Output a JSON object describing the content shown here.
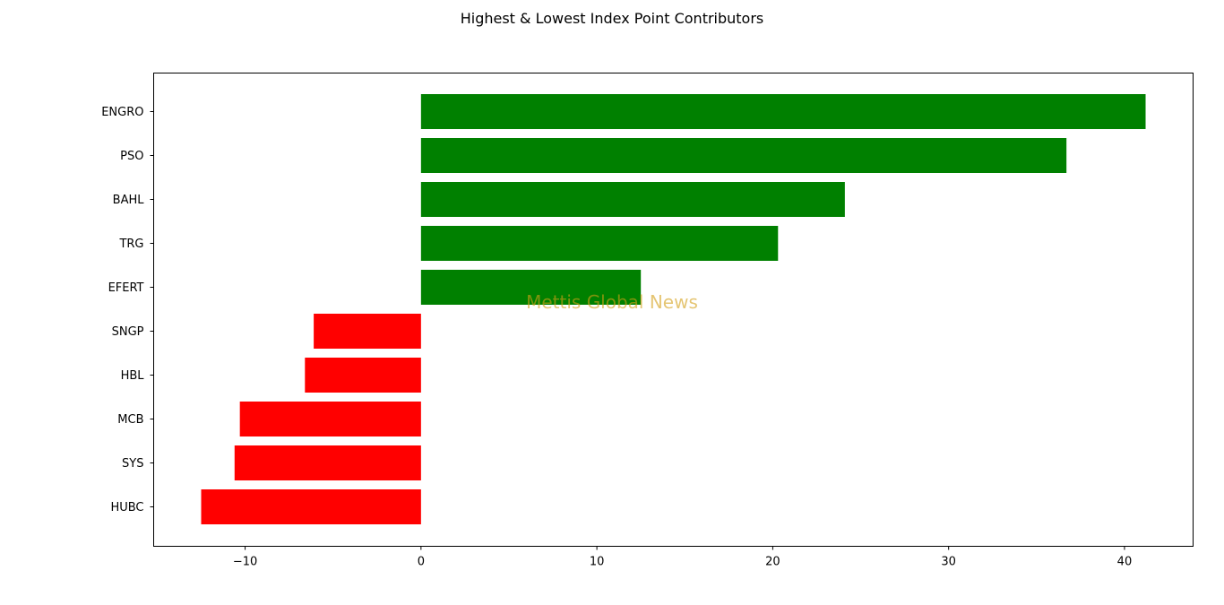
{
  "chart_data": {
    "type": "bar",
    "orientation": "horizontal",
    "title": "Highest & Lowest Index Point Contributors",
    "xlabel": "",
    "ylabel": "",
    "categories": [
      "ENGRO",
      "PSO",
      "BAHL",
      "TRG",
      "EFERT",
      "SNGP",
      "HBL",
      "MCB",
      "SYS",
      "HUBC"
    ],
    "values": [
      41.2,
      36.7,
      24.1,
      20.3,
      12.5,
      -6.1,
      -6.6,
      -10.3,
      -10.6,
      -12.5
    ],
    "colors": [
      "#008000",
      "#008000",
      "#008000",
      "#008000",
      "#008000",
      "#ff0000",
      "#ff0000",
      "#ff0000",
      "#ff0000",
      "#ff0000"
    ],
    "xlim": [
      -15.2,
      43.9
    ],
    "xticks": [
      -10,
      0,
      10,
      20,
      30,
      40
    ],
    "xtick_labels": [
      "−10",
      "0",
      "10",
      "20",
      "30",
      "40"
    ],
    "grid": false,
    "watermark": "Mettis Global News"
  }
}
